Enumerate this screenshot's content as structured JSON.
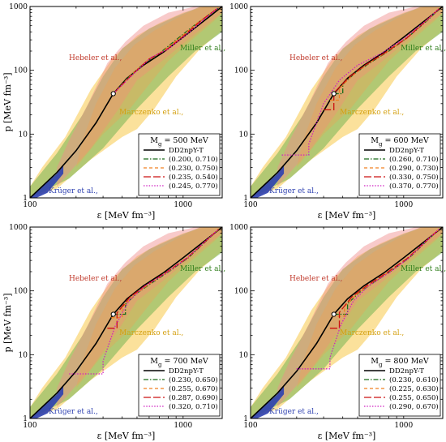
{
  "chart_data": [
    {
      "type": "line",
      "panel": "top-left",
      "title": "",
      "legend_title": "M",
      "legend_title_sub": "g",
      "legend_title_value": " = 500 MeV",
      "xlabel": "ε [MeV fm⁻³]",
      "ylabel": "p [MeV fm⁻³]",
      "x_scale": "log",
      "y_scale": "log",
      "xlim": [
        100,
        1800
      ],
      "ylim": [
        1,
        1000
      ],
      "xticks": [
        "100",
        "1000"
      ],
      "yticks": [
        "1",
        "10",
        "100",
        "1000"
      ],
      "legend_position": "bottom-right",
      "bands": [
        {
          "name": "Hebeler et al.,",
          "color": "#f08a8a"
        },
        {
          "name": "Miller et al.,",
          "color": "#6ab04c"
        },
        {
          "name": "Marczenko et al.,",
          "color": "#f7c948"
        },
        {
          "name": "Krüger et al.,",
          "color": "#2c3fb0"
        }
      ],
      "series": [
        {
          "name": "DD2npY-T",
          "style": "solid",
          "color": "#000000",
          "x": [
            100,
            150,
            200,
            270,
            350,
            430,
            550,
            750,
            1000,
            1400,
            1800
          ],
          "y": [
            1,
            2.5,
            5.5,
            15,
            43,
            75,
            120,
            195,
            330,
            620,
            1000
          ]
        },
        {
          "name": "(0.200, 0.710)",
          "style": "dashdot",
          "color": "#1a6b1a",
          "x": [
            350,
            450,
            560,
            720,
            900,
            1200,
            1700
          ],
          "y": [
            43,
            82,
            130,
            195,
            300,
            520,
            950
          ]
        },
        {
          "name": "(0.230, 0.750)",
          "style": "dashed",
          "color": "#f08020",
          "x": [
            350,
            460,
            580,
            750,
            950,
            1250,
            1700
          ],
          "y": [
            43,
            85,
            140,
            205,
            320,
            560,
            960
          ]
        },
        {
          "name": "(0.235, 0.540)",
          "style": "longdash",
          "color": "#cc1010",
          "x": [
            350,
            470,
            600,
            780,
            1000,
            1300,
            1700
          ],
          "y": [
            43,
            88,
            150,
            210,
            340,
            590,
            960
          ]
        },
        {
          "name": "(0.245, 0.770)",
          "style": "dotted",
          "color": "#d020c0",
          "x": [
            350,
            480,
            620,
            800,
            1050,
            1350,
            1700
          ],
          "y": [
            43,
            90,
            160,
            215,
            360,
            610,
            960
          ]
        }
      ],
      "marker": {
        "x": 350,
        "y": 43
      }
    },
    {
      "type": "line",
      "panel": "top-right",
      "title": "",
      "legend_title": "M",
      "legend_title_sub": "g",
      "legend_title_value": " = 600 MeV",
      "xlabel": "ε [MeV fm⁻³]",
      "ylabel": "",
      "x_scale": "log",
      "y_scale": "log",
      "xlim": [
        100,
        1800
      ],
      "ylim": [
        1,
        1000
      ],
      "xticks": [
        "100",
        "1000"
      ],
      "yticks": [
        "1",
        "10",
        "100",
        "1000"
      ],
      "legend_position": "bottom-right",
      "bands": [
        {
          "name": "Hebeler et al.,",
          "color": "#f08a8a"
        },
        {
          "name": "Miller et al.,",
          "color": "#6ab04c"
        },
        {
          "name": "Marczenko et al.,",
          "color": "#f7c948"
        },
        {
          "name": "Krüger et al.,",
          "color": "#2c3fb0"
        }
      ],
      "series": [
        {
          "name": "DD2npY-T",
          "style": "solid",
          "color": "#000000",
          "x": [
            100,
            150,
            200,
            270,
            350,
            430,
            550,
            750,
            1000,
            1400,
            1800
          ],
          "y": [
            1,
            2.5,
            5.5,
            15,
            43,
            75,
            120,
            195,
            330,
            620,
            1000
          ]
        },
        {
          "name": "(0.260, 0.710)",
          "style": "dashdot",
          "color": "#1a6b1a",
          "x": [
            350,
            400,
            400,
            480,
            600,
            800,
            1050,
            1400,
            1700
          ],
          "y": [
            43,
            43,
            60,
            90,
            130,
            200,
            320,
            580,
            900
          ]
        },
        {
          "name": "(0.290, 0.730)",
          "style": "dashed",
          "color": "#f08020",
          "x": [
            330,
            380,
            380,
            460,
            580,
            780,
            1050,
            1400,
            1700
          ],
          "y": [
            34,
            34,
            52,
            82,
            125,
            195,
            320,
            590,
            910
          ]
        },
        {
          "name": "(0.330, 0.750)",
          "style": "longdash",
          "color": "#cc1010",
          "x": [
            300,
            350,
            350,
            440,
            560,
            760,
            1050,
            1400,
            1700
          ],
          "y": [
            24,
            24,
            44,
            78,
            120,
            190,
            320,
            600,
            920
          ]
        },
        {
          "name": "(0.370, 0.770)",
          "style": "dotted",
          "color": "#d020c0",
          "x": [
            160,
            240,
            240,
            300,
            380,
            500,
            700,
            1000,
            1400,
            1700
          ],
          "y": [
            4.7,
            4.7,
            7,
            30,
            70,
            120,
            180,
            310,
            600,
            920
          ]
        }
      ],
      "marker": {
        "x": 350,
        "y": 43
      }
    },
    {
      "type": "line",
      "panel": "bottom-left",
      "title": "",
      "legend_title": "M",
      "legend_title_sub": "g",
      "legend_title_value": " = 700 MeV",
      "xlabel": "ε [MeV fm⁻³]",
      "ylabel": "p [MeV fm⁻³]",
      "x_scale": "log",
      "y_scale": "log",
      "xlim": [
        100,
        1800
      ],
      "ylim": [
        1,
        1000
      ],
      "xticks": [
        "100",
        "1000"
      ],
      "yticks": [
        "1",
        "10",
        "100",
        "1000"
      ],
      "legend_position": "bottom-right",
      "bands": [
        {
          "name": "Hebeler et al.,",
          "color": "#f08a8a"
        },
        {
          "name": "Miller et al.,",
          "color": "#6ab04c"
        },
        {
          "name": "Marczenko et al.,",
          "color": "#f7c948"
        },
        {
          "name": "Krüger et al.,",
          "color": "#2c3fb0"
        }
      ],
      "series": [
        {
          "name": "DD2npY-T",
          "style": "solid",
          "color": "#000000",
          "x": [
            100,
            150,
            200,
            270,
            350,
            430,
            550,
            750,
            1000,
            1400,
            1800
          ],
          "y": [
            1,
            2.5,
            5.5,
            15,
            43,
            75,
            120,
            195,
            330,
            620,
            1000
          ]
        },
        {
          "name": "(0.230, 0.650)",
          "style": "dashdot",
          "color": "#1a6b1a",
          "x": [
            350,
            420,
            420,
            500,
            620,
            820,
            1080,
            1400,
            1700
          ],
          "y": [
            43,
            43,
            62,
            92,
            132,
            205,
            330,
            590,
            910
          ]
        },
        {
          "name": "(0.255, 0.670)",
          "style": "dashed",
          "color": "#f08020",
          "x": [
            340,
            400,
            400,
            480,
            600,
            800,
            1060,
            1400,
            1700
          ],
          "y": [
            38,
            38,
            55,
            85,
            128,
            200,
            325,
            595,
            915
          ]
        },
        {
          "name": "(0.287, 0.690)",
          "style": "longdash",
          "color": "#cc1010",
          "x": [
            320,
            370,
            370,
            450,
            570,
            770,
            1050,
            1400,
            1700
          ],
          "y": [
            26,
            26,
            45,
            80,
            122,
            193,
            322,
            600,
            920
          ]
        },
        {
          "name": "(0.320, 0.710)",
          "style": "dotted",
          "color": "#d020c0",
          "x": [
            180,
            300,
            300,
            360,
            440,
            560,
            760,
            1050,
            1400,
            1700
          ],
          "y": [
            5,
            5,
            8,
            28,
            68,
            118,
            185,
            320,
            605,
            925
          ]
        }
      ],
      "marker": {
        "x": 350,
        "y": 43
      }
    },
    {
      "type": "line",
      "panel": "bottom-right",
      "title": "",
      "legend_title": "M",
      "legend_title_sub": "g",
      "legend_title_value": " = 800 MeV",
      "xlabel": "ε [MeV fm⁻³]",
      "ylabel": "",
      "x_scale": "log",
      "y_scale": "log",
      "xlim": [
        100,
        1800
      ],
      "ylim": [
        1,
        1000
      ],
      "xticks": [
        "100",
        "1000"
      ],
      "yticks": [
        "1",
        "10",
        "100",
        "1000"
      ],
      "legend_position": "bottom-right",
      "bands": [
        {
          "name": "Hebeler et al.,",
          "color": "#f08a8a"
        },
        {
          "name": "Miller et al.,",
          "color": "#6ab04c"
        },
        {
          "name": "Marczenko et al.,",
          "color": "#f7c948"
        },
        {
          "name": "Krüger et al.,",
          "color": "#2c3fb0"
        }
      ],
      "series": [
        {
          "name": "DD2npY-T",
          "style": "solid",
          "color": "#000000",
          "x": [
            100,
            150,
            200,
            270,
            350,
            430,
            550,
            750,
            1000,
            1400,
            1800
          ],
          "y": [
            1,
            2.5,
            5.5,
            15,
            43,
            75,
            120,
            195,
            330,
            620,
            1000
          ]
        },
        {
          "name": "(0.230, 0.610)",
          "style": "dashdot",
          "color": "#1a6b1a",
          "x": [
            350,
            430,
            430,
            510,
            630,
            830,
            1090,
            1400,
            1700
          ],
          "y": [
            43,
            43,
            63,
            93,
            133,
            206,
            332,
            592,
            912
          ]
        },
        {
          "name": "(0.225, 0.630)",
          "style": "dashed",
          "color": "#f08020",
          "x": [
            340,
            410,
            410,
            490,
            610,
            810,
            1070,
            1400,
            1700
          ],
          "y": [
            40,
            40,
            57,
            87,
            129,
            201,
            327,
            597,
            917
          ]
        },
        {
          "name": "(0.255, 0.650)",
          "style": "longdash",
          "color": "#cc1010",
          "x": [
            330,
            380,
            380,
            460,
            580,
            780,
            1055,
            1400,
            1700
          ],
          "y": [
            26,
            26,
            46,
            81,
            123,
            194,
            323,
            601,
            921
          ]
        },
        {
          "name": "(0.290, 0.670)",
          "style": "dotted",
          "color": "#d020c0",
          "x": [
            200,
            330,
            330,
            390,
            470,
            590,
            790,
            1070,
            1400,
            1700
          ],
          "y": [
            6,
            6,
            9,
            30,
            70,
            120,
            188,
            322,
            606,
            926
          ]
        }
      ],
      "marker": {
        "x": 350,
        "y": 43
      }
    }
  ]
}
